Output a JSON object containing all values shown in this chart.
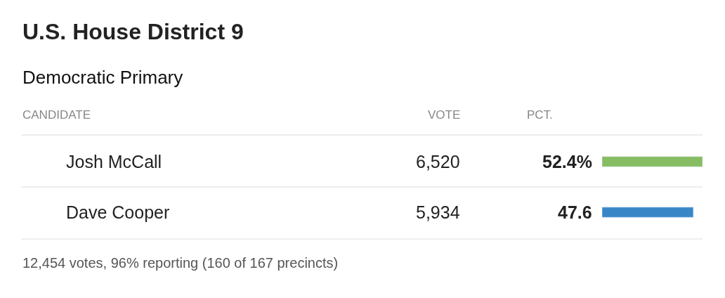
{
  "chart_data": {
    "type": "bar",
    "orientation": "horizontal",
    "title": "U.S. House District 9",
    "subtitle": "Democratic Primary",
    "categories": [
      "Josh McCall",
      "Dave Cooper"
    ],
    "values": [
      52.4,
      47.6
    ],
    "colors": [
      "#86bc62",
      "#3a87c8"
    ],
    "value_labels": [
      "52.4%",
      "47.6"
    ],
    "annotations": [
      "CANDIDATE",
      "VOTE",
      "PCT.",
      "6,520",
      "5,934",
      "12,454 votes, 96% reporting (160 of 167 precincts)"
    ],
    "legend": false
  }
}
